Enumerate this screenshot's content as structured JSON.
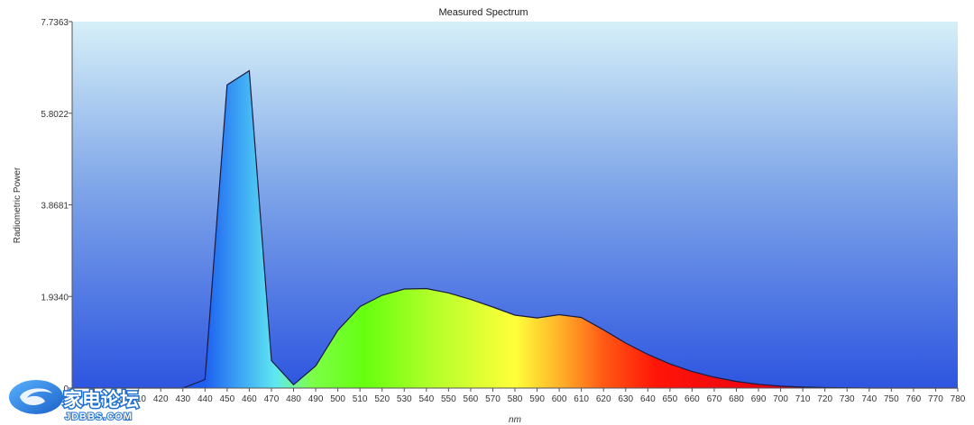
{
  "chart_data": {
    "type": "area",
    "title": "Measured Spectrum",
    "xlabel": "nm",
    "ylabel": "Radiometric Power",
    "xlim": [
      380,
      780
    ],
    "ylim": [
      0,
      7.7363
    ],
    "yticks": [
      "7.7363",
      "5.8022",
      "3.8681",
      "1.9340",
      "0"
    ],
    "ytick_values": [
      7.7363,
      5.8022,
      3.8681,
      1.934,
      0
    ],
    "xticks": [
      380,
      390,
      400,
      410,
      420,
      430,
      440,
      450,
      460,
      470,
      480,
      490,
      500,
      510,
      520,
      530,
      540,
      550,
      560,
      570,
      580,
      590,
      600,
      610,
      620,
      630,
      640,
      650,
      660,
      670,
      680,
      690,
      700,
      710,
      720,
      730,
      740,
      750,
      760,
      770,
      780
    ],
    "series": [
      {
        "x": [
          380,
          390,
          400,
          410,
          420,
          430,
          440,
          450,
          460,
          470,
          480,
          490,
          500,
          510,
          520,
          530,
          540,
          550,
          560,
          570,
          580,
          590,
          600,
          610,
          620,
          630,
          640,
          650,
          660,
          670,
          680,
          690,
          700,
          710,
          720,
          730,
          740,
          750,
          760,
          770,
          780
        ],
        "values": [
          0,
          0,
          0,
          0,
          0,
          0,
          0.18,
          6.4,
          6.7,
          0.58,
          0.07,
          0.47,
          1.22,
          1.72,
          1.96,
          2.09,
          2.1,
          2.01,
          1.87,
          1.71,
          1.54,
          1.48,
          1.55,
          1.49,
          1.23,
          0.95,
          0.71,
          0.51,
          0.35,
          0.23,
          0.14,
          0.08,
          0.04,
          0.02,
          0.01,
          0.005,
          0,
          0,
          0,
          0,
          0
        ]
      }
    ],
    "grid": false,
    "legend": "none"
  },
  "watermark": {
    "text": "家电论坛",
    "url": "JDBBS.COM"
  }
}
